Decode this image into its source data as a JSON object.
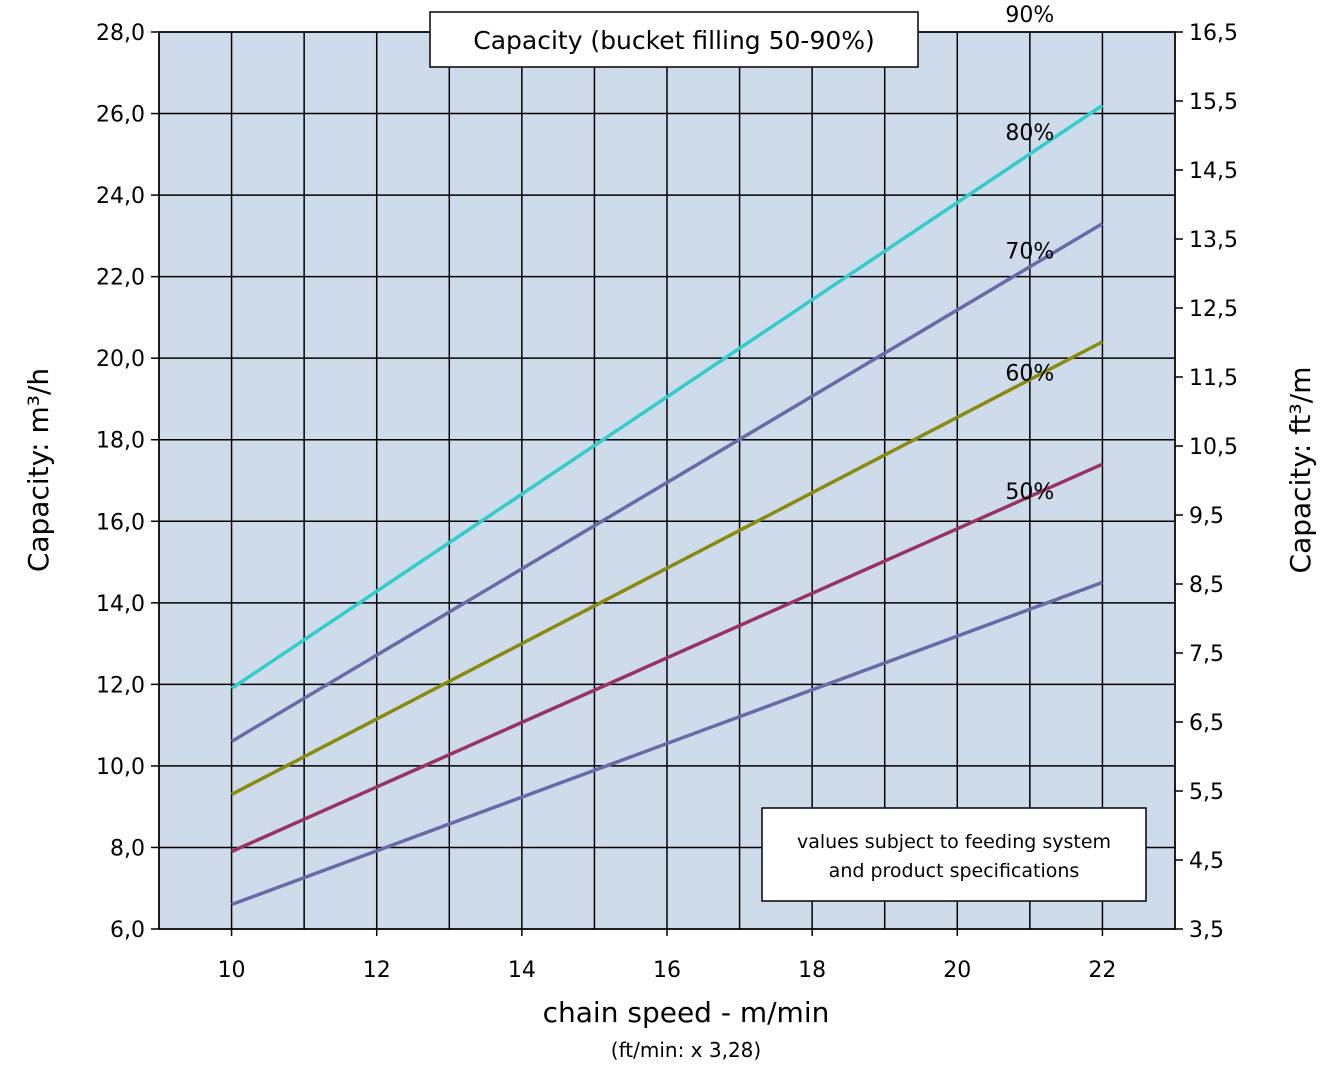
{
  "chart_data": {
    "type": "line",
    "title": "Capacity (bucket filling 50-90%)",
    "xlabel": "chain speed - m/min",
    "xlabel_sub": "(ft/min: x 3,28)",
    "ylabel_left": "Capacity: m³/h",
    "ylabel_right": "Capacity: ft³/m",
    "xlim": [
      9,
      23
    ],
    "ylim": [
      6,
      28
    ],
    "ylim_right": [
      3.5,
      16.5
    ],
    "x_ticks": [
      "10",
      "12",
      "14",
      "16",
      "18",
      "20",
      "22"
    ],
    "y_ticks_left": [
      "6,0",
      "8,0",
      "10,0",
      "12,0",
      "14,0",
      "16,0",
      "18,0",
      "20,0",
      "22,0",
      "24,0",
      "26,0",
      "28,0"
    ],
    "y_ticks_right": [
      "3,5",
      "4,5",
      "5,5",
      "6,5",
      "7,5",
      "8,5",
      "9,5",
      "10,5",
      "11,5",
      "12,5",
      "13,5",
      "14,5",
      "15,5",
      "16,5"
    ],
    "grid": true,
    "background_color": "#cddbeb",
    "note": [
      "values subject to feeding system",
      "and product specifications"
    ],
    "series": [
      {
        "name": "90%",
        "color": "#33cccc",
        "x": [
          10,
          22
        ],
        "y": [
          11.9,
          26.2
        ]
      },
      {
        "name": "80%",
        "color": "#6a6aa8",
        "x": [
          10,
          22
        ],
        "y": [
          10.6,
          23.3
        ]
      },
      {
        "name": "70%",
        "color": "#8a8a10",
        "x": [
          10,
          22
        ],
        "y": [
          9.3,
          20.4
        ]
      },
      {
        "name": "60%",
        "color": "#993366",
        "x": [
          10,
          22
        ],
        "y": [
          7.9,
          17.4
        ]
      },
      {
        "name": "50%",
        "color": "#6a6aa8",
        "x": [
          10,
          22
        ],
        "y": [
          6.6,
          14.5
        ]
      }
    ]
  }
}
